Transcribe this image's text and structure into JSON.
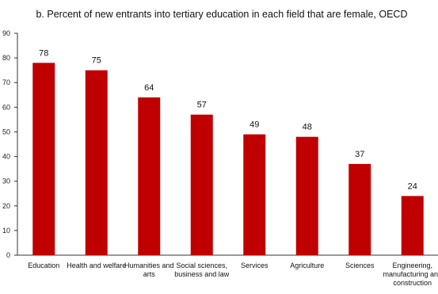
{
  "chart_data": {
    "type": "bar",
    "title": "b. Percent of new entrants into tertiary education in each field that are female, OECD",
    "xlabel": "",
    "ylabel": "",
    "ylim": [
      0,
      90
    ],
    "yticks": [
      0,
      10,
      20,
      30,
      40,
      50,
      60,
      70,
      80,
      90
    ],
    "grid": false,
    "categories": [
      [
        "Education"
      ],
      [
        "Health and welfare"
      ],
      [
        "Humanities and",
        "arts"
      ],
      [
        "Social sciences,",
        "business and law"
      ],
      [
        "Services"
      ],
      [
        "Agriculture"
      ],
      [
        "Sciences"
      ],
      [
        "Engineering,",
        "manufacturing and",
        "construction"
      ]
    ],
    "values": [
      78,
      75,
      64,
      57,
      49,
      48,
      37,
      24
    ],
    "value_labels": [
      "78",
      "75",
      "64",
      "57",
      "49",
      "48",
      "37",
      "24"
    ],
    "bar_color": "#c00000"
  }
}
